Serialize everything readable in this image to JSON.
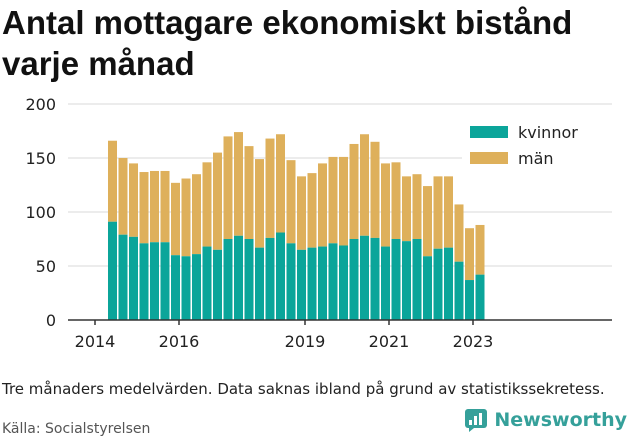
{
  "title": "Antal mottagare ekonomiskt bistånd varje månad",
  "note": "Tre månaders medelvärden. Data saknas ibland på grund av statistikssekretess.",
  "source": "Källa: Socialstyrelsen",
  "brand": {
    "name": "Newsworthy",
    "logo_icon": "bar-chart-logo-icon"
  },
  "colors": {
    "kvinnor": "#0ba59a",
    "man": "#deb05b",
    "grid": "#d9d9d9",
    "axis": "#333333"
  },
  "chart_data": {
    "type": "bar",
    "stacked": true,
    "title": "Antal mottagare ekonomiskt bistånd varje månad",
    "xlabel": "",
    "ylabel": "",
    "ylim": [
      0,
      200
    ],
    "yticks": [
      "0",
      "50",
      "100",
      "150",
      "200"
    ],
    "xticks": [
      "2014",
      "2016",
      "2019",
      "2021",
      "2023"
    ],
    "legend": "top-right",
    "grid": true,
    "categories": [
      "2014-06",
      "2014-09",
      "2014-12",
      "2015-03",
      "2015-06",
      "2015-09",
      "2015-12",
      "2016-03",
      "2016-06",
      "2016-09",
      "2016-12",
      "2017-03",
      "2017-06",
      "2017-09",
      "2017-12",
      "2018-03",
      "2018-06",
      "2018-09",
      "2018-12",
      "2019-03",
      "2019-06",
      "2019-09",
      "2019-12",
      "2020-03",
      "2020-06",
      "2020-09",
      "2020-12",
      "2021-03",
      "2021-06",
      "2021-09",
      "2021-12",
      "2022-03",
      "2022-06",
      "2022-09",
      "2022-12",
      "2023-03"
    ],
    "series": [
      {
        "name": "kvinnor",
        "values": [
          91,
          79,
          77,
          71,
          72,
          72,
          60,
          59,
          61,
          68,
          65,
          75,
          78,
          75,
          67,
          76,
          81,
          71,
          65,
          67,
          68,
          71,
          69,
          75,
          78,
          76,
          68,
          75,
          73,
          75,
          59,
          66,
          67,
          54,
          37,
          42
        ]
      },
      {
        "name": "män",
        "values": [
          75,
          71,
          68,
          66,
          66,
          66,
          67,
          72,
          74,
          78,
          90,
          95,
          96,
          86,
          82,
          92,
          91,
          77,
          68,
          69,
          77,
          80,
          82,
          88,
          94,
          89,
          77,
          71,
          60,
          60,
          65,
          67,
          66,
          53,
          48,
          46
        ]
      }
    ]
  }
}
